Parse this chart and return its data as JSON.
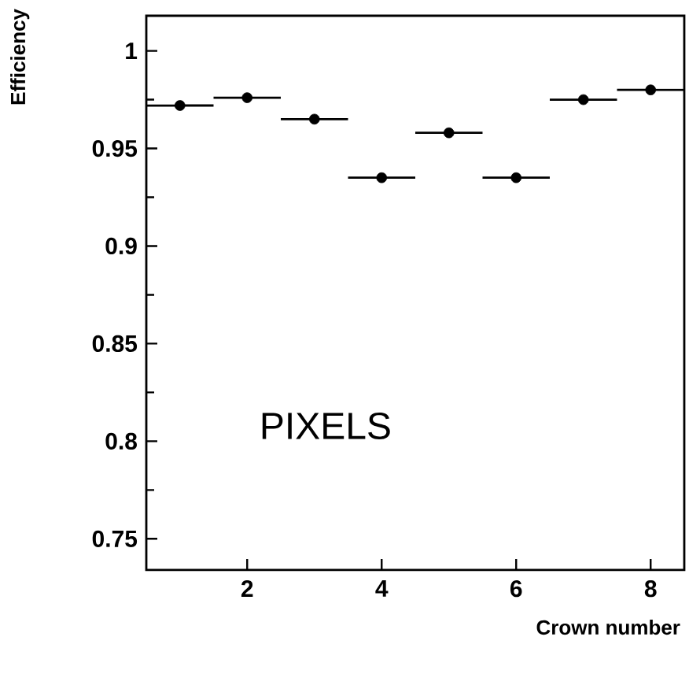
{
  "chart_data": {
    "type": "scatter",
    "xlabel": "Crown number",
    "ylabel": "Efficiency",
    "annotations": [
      "PIXELS"
    ],
    "x": [
      1,
      2,
      3,
      4,
      5,
      6,
      7,
      8
    ],
    "series": [
      {
        "color": "#000000",
        "values": [
          0.972,
          0.976,
          0.965,
          0.935,
          0.958,
          0.935,
          0.975,
          0.98
        ],
        "xerrors": [
          0.5,
          0.5,
          0.5,
          0.5,
          0.5,
          0.5,
          0.5,
          0.5
        ]
      }
    ],
    "xlim": [
      0.5,
      8.5
    ],
    "ylim": [
      0.734,
      1.018
    ],
    "xticks": [
      2,
      4,
      6,
      8
    ],
    "yticks": [
      0.75,
      0.8,
      0.85,
      0.9,
      0.95,
      1
    ],
    "grid": false,
    "marker": "circle"
  }
}
